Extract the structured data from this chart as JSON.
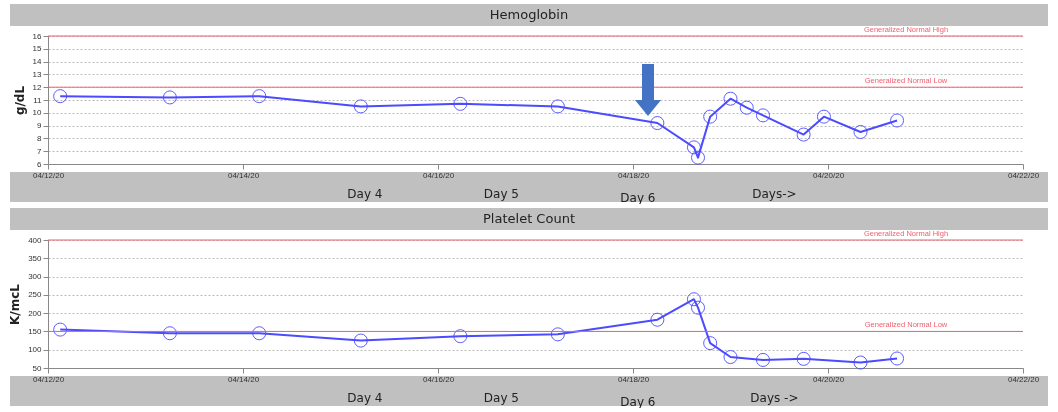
{
  "chart_data": [
    {
      "type": "line",
      "title": "Hemoglobin",
      "ylabel": "g/dL",
      "xlim": [
        "--04-12T00:00",
        "--04-22T00:00"
      ],
      "xticks": [
        {
          "value": "--04-12T00:00",
          "label": "04/12/20"
        },
        {
          "value": "--04-14T00:00",
          "label": "04/14/20"
        },
        {
          "value": "--04-16T00:00",
          "label": "04/16/20"
        },
        {
          "value": "--04-18T00:00",
          "label": "04/18/20"
        },
        {
          "value": "--04-20T00:00",
          "label": "04/20/20"
        },
        {
          "value": "--04-22T00:00",
          "label": "04/22/20"
        }
      ],
      "ylim": [
        6,
        16
      ],
      "yticks": [
        6,
        7,
        8,
        9,
        10,
        11,
        12,
        13,
        14,
        15,
        16
      ],
      "x": [
        "--04-12T03:00",
        "--04-13T06:00",
        "--04-14T04:00",
        "--04-15T05:00",
        "--04-16T05:30",
        "--04-17T05:30",
        "--04-18T06:00",
        "--04-18T15:00",
        "--04-18T16:00",
        "--04-18T19:00",
        "--04-19T00:00",
        "--04-19T04:00",
        "--04-19T08:00",
        "--04-19T18:00",
        "--04-19T23:00",
        "--04-20T08:00",
        "--04-20T17:00"
      ],
      "series": [
        {
          "color": "#4b4bff",
          "values": [
            11.3,
            11.2,
            11.3,
            10.5,
            10.7,
            10.5,
            9.2,
            7.3,
            6.5,
            9.7,
            11.1,
            10.4,
            9.8,
            8.3,
            9.7,
            8.5,
            9.4
          ]
        }
      ],
      "ref_lines": [
        {
          "axis": "y",
          "value": 16,
          "label": "Generalized Normal High",
          "color": "#f06070"
        },
        {
          "axis": "y",
          "value": 12,
          "label": "Generalized Normal Low",
          "color": "#f06070"
        }
      ],
      "annotations": [
        "Day 4",
        "Day 5",
        "Day 6",
        "Days->"
      ],
      "grid": "y",
      "marker": "circle",
      "line_style": "solid"
    },
    {
      "type": "line",
      "title": "Platelet Count",
      "ylabel": "K/mcL",
      "xlim": [
        "--04-12T00:00",
        "--04-22T00:00"
      ],
      "xticks": [
        {
          "value": "--04-12T00:00",
          "label": "04/12/20"
        },
        {
          "value": "--04-14T00:00",
          "label": "04/14/20"
        },
        {
          "value": "--04-16T00:00",
          "label": "04/16/20"
        },
        {
          "value": "--04-18T00:00",
          "label": "04/18/20"
        },
        {
          "value": "--04-20T00:00",
          "label": "04/20/20"
        },
        {
          "value": "--04-22T00:00",
          "label": "04/22/20"
        }
      ],
      "ylim": [
        50,
        400
      ],
      "yticks": [
        50,
        100,
        150,
        200,
        250,
        300,
        350,
        400
      ],
      "x": [
        "--04-12T03:00",
        "--04-13T06:00",
        "--04-14T04:00",
        "--04-15T05:00",
        "--04-16T05:30",
        "--04-17T05:30",
        "--04-18T06:00",
        "--04-18T15:00",
        "--04-18T16:00",
        "--04-18T19:00",
        "--04-19T00:00",
        "--04-19T08:00",
        "--04-19T18:00",
        "--04-20T08:00",
        "--04-20T17:00"
      ],
      "series": [
        {
          "color": "#4b4bff",
          "values": [
            155,
            145,
            145,
            125,
            137,
            142,
            182,
            238,
            215,
            118,
            80,
            72,
            75,
            65,
            76
          ]
        }
      ],
      "ref_lines": [
        {
          "axis": "y",
          "value": 400,
          "label": "Generalized Normal High",
          "color": "#f06070"
        },
        {
          "axis": "y",
          "value": 150,
          "label": "Generalized Normal Low",
          "color": "#f06070"
        }
      ],
      "annotations": [
        "Day 4",
        "Day 5",
        "Day 6",
        "Days ->"
      ],
      "grid": "y",
      "marker": "circle",
      "line_style": "solid"
    }
  ]
}
